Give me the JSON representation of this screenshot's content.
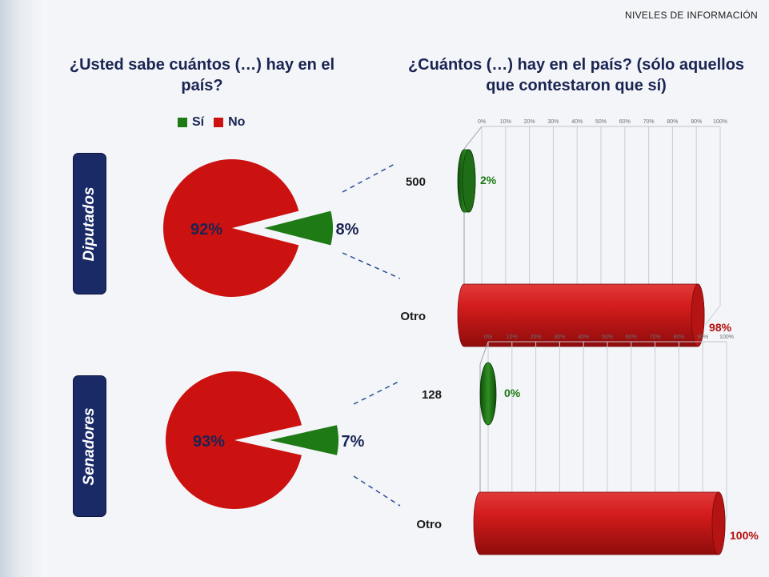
{
  "header": {
    "section": "NIVELES DE INFORMACIÓN"
  },
  "left_title": "¿Usted sabe cuántos (…) hay en el país?",
  "right_title": "¿Cuántos (…) hay en el país? (sólo aquellos que contestaron que sí)",
  "legend": {
    "yes": "Sí",
    "no": "No"
  },
  "rows": {
    "diputados": "Diputados",
    "senadores": "Senadores"
  },
  "colors": {
    "yes": "#1e7a14",
    "no": "#cc1111",
    "navy": "#1a2452"
  },
  "chart_data": [
    {
      "type": "pie",
      "group": "Diputados",
      "slices": [
        {
          "label": "Sí",
          "value": 8,
          "display": "8%"
        },
        {
          "label": "No",
          "value": 92,
          "display": "92%"
        }
      ]
    },
    {
      "type": "bar",
      "group": "Diputados",
      "orientation": "horizontal",
      "categories": [
        "500",
        "Otro"
      ],
      "values": [
        2,
        98
      ],
      "labels": [
        "2%",
        "98%"
      ],
      "xlim": [
        0,
        100
      ],
      "ticks": [
        "0%",
        "10%",
        "20%",
        "30%",
        "40%",
        "50%",
        "60%",
        "70%",
        "80%",
        "90%",
        "100%"
      ]
    },
    {
      "type": "pie",
      "group": "Senadores",
      "slices": [
        {
          "label": "Sí",
          "value": 7,
          "display": "7%"
        },
        {
          "label": "No",
          "value": 93,
          "display": "93%"
        }
      ]
    },
    {
      "type": "bar",
      "group": "Senadores",
      "orientation": "horizontal",
      "categories": [
        "128",
        "Otro"
      ],
      "values": [
        0,
        100
      ],
      "labels": [
        "0%",
        "100%"
      ],
      "xlim": [
        0,
        100
      ],
      "ticks": [
        "0%",
        "10%",
        "20%",
        "30%",
        "40%",
        "50%",
        "60%",
        "70%",
        "80%",
        "90%",
        "100%"
      ]
    }
  ]
}
